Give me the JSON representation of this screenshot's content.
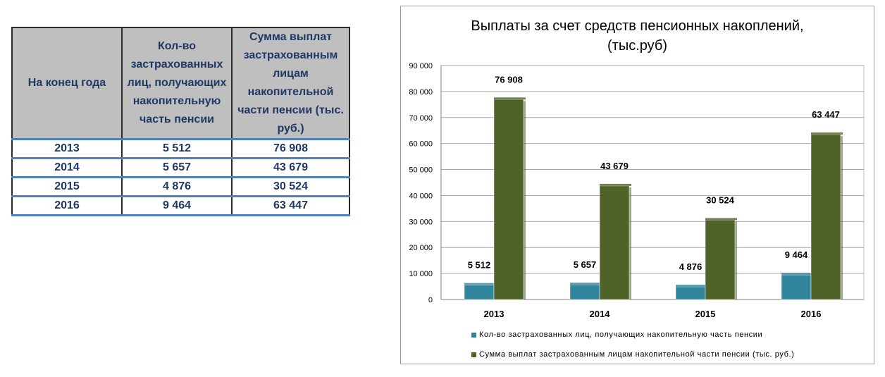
{
  "table": {
    "headers": [
      "На конец года",
      "Кол-во застрахованных лиц, получающих накопительную часть пенсии",
      "Сумма выплат застрахованным лицам накопительной части пенсии (тыс. руб.)"
    ],
    "rows": [
      [
        "2013",
        "5 512",
        "76 908"
      ],
      [
        "2014",
        "5 657",
        "43 679"
      ],
      [
        "2015",
        "4 876",
        "30 524"
      ],
      [
        "2016",
        "9 464",
        "63 447"
      ]
    ]
  },
  "chart_data": {
    "type": "bar",
    "title": "Выплаты за счет средств пенсионных накоплений, (тыс.руб)",
    "title_lines": [
      "Выплаты за счет средств пенсионных накоплений,",
      "(тыс.руб)"
    ],
    "categories": [
      "2013",
      "2014",
      "2015",
      "2016"
    ],
    "series": [
      {
        "name": "Кол-во застрахованных  лиц, получающих  накопительную  часть  пенсии",
        "values": [
          5512,
          5657,
          4876,
          9464
        ],
        "labels": [
          "5 512",
          "5 657",
          "4 876",
          "9 464"
        ],
        "color": "#31859c"
      },
      {
        "name": "Сумма  выплат  застрахованным  лицам  накопительной  части  пенсии  (тыс.  руб.)",
        "values": [
          76908,
          43679,
          30524,
          63447
        ],
        "labels": [
          "76 908",
          "43 679",
          "30 524",
          "63 447"
        ],
        "color": "#4f6228"
      }
    ],
    "ylim": [
      0,
      90000
    ],
    "yticks": [
      0,
      10000,
      20000,
      30000,
      40000,
      50000,
      60000,
      70000,
      80000,
      90000
    ],
    "ytick_labels": [
      "0",
      "10 000",
      "20 000",
      "30 000",
      "40 000",
      "50 000",
      "60 000",
      "70 000",
      "80 000",
      "90 000"
    ],
    "grid": true,
    "legend_position": "bottom"
  }
}
